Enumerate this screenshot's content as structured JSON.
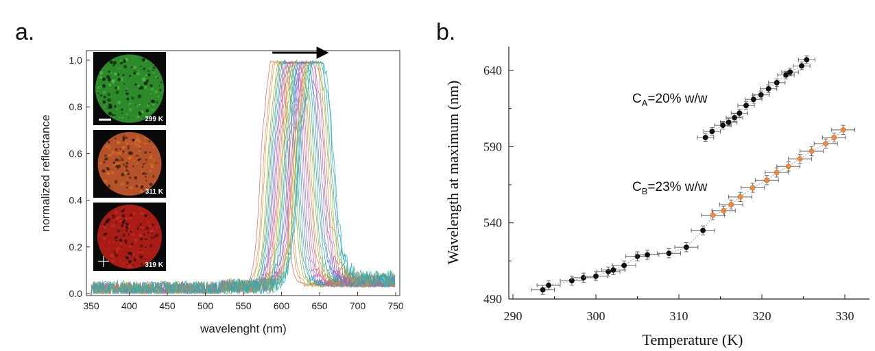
{
  "panel_a": {
    "letter": "a.",
    "insets": [
      {
        "temp_label": "299 K",
        "base": "#2d8a2a",
        "hi": "#59c24a"
      },
      {
        "temp_label": "311 K",
        "base": "#b5522a",
        "hi": "#d8792e"
      },
      {
        "temp_label": "319 K",
        "base": "#a81c16",
        "hi": "#d23220"
      }
    ]
  },
  "panel_b": {
    "letter": "b."
  },
  "chart_data": [
    {
      "type": "line",
      "xlabel": "wavelenght (nm)",
      "ylabel": "normalized reflectance",
      "xlim": [
        350,
        750
      ],
      "ylim": [
        0,
        1.05
      ],
      "xticks": [
        "350",
        "400",
        "450",
        "500",
        "550",
        "600",
        "650",
        "700",
        "750"
      ],
      "yticks": [
        "0.0",
        "0.2",
        "0.4",
        "0.6",
        "0.8",
        "1.0"
      ],
      "grid": false,
      "annotation": "arrow from 590 nm to 657 nm at top indicating peak red-shift with temperature",
      "series_description": "normalized reflectance spectra, peaks shifting from ~590 nm to ~647 nm",
      "peak_wavelengths": [
        590,
        594,
        596,
        600,
        602,
        604,
        606,
        608,
        610,
        612,
        614,
        616,
        618,
        620,
        622,
        624,
        626,
        628,
        630,
        632,
        634,
        636,
        638,
        640,
        642,
        644,
        646,
        647
      ],
      "colors": [
        "#e8605e",
        "#f08a4a",
        "#d4a23a",
        "#9aa83a",
        "#5fae4a",
        "#3aa88a",
        "#33a3c4",
        "#4a86d0",
        "#7a6cd2",
        "#b060c4",
        "#d45a9a",
        "#e06070",
        "#e8805a",
        "#c49a3a",
        "#8ab040",
        "#4aae6a",
        "#2ea8a8",
        "#3a94d2",
        "#5a7ad4",
        "#8a66cc",
        "#b65cb8",
        "#d0608a",
        "#de7a5a",
        "#bca040",
        "#7cb44a",
        "#3cb08a",
        "#2aa8c4",
        "#28b4b8"
      ]
    },
    {
      "type": "scatter",
      "xlabel": "Temperature (K)",
      "ylabel": "Wavelength at maximum (nm)",
      "xlim": [
        288,
        335
      ],
      "ylim": [
        488,
        655
      ],
      "xticks": [
        "290",
        "300",
        "310",
        "320",
        "330"
      ],
      "yticks": [
        "490",
        "540",
        "590",
        "640"
      ],
      "grid": false,
      "series": [
        {
          "name": "C_A=20% w/w",
          "label_main": "C",
          "label_sub": "A",
          "label_rest": "=20% w/w",
          "color": "#111111",
          "points": [
            [
              313.2,
              596
            ],
            [
              314.0,
              600
            ],
            [
              315.3,
              604
            ],
            [
              316.0,
              606
            ],
            [
              316.7,
              609
            ],
            [
              317.3,
              612
            ],
            [
              318.1,
              617
            ],
            [
              319.0,
              621
            ],
            [
              319.9,
              624
            ],
            [
              320.8,
              628
            ],
            [
              321.8,
              632
            ],
            [
              322.9,
              637
            ],
            [
              323.4,
              639
            ],
            [
              324.8,
              643
            ],
            [
              325.4,
              647
            ]
          ],
          "xerr": 1.0,
          "yerr": 2.5
        },
        {
          "name": "C_B=23% w/w",
          "label_main": "C",
          "label_sub": "B",
          "label_rest": "=23% w/w",
          "color": "#111111",
          "points": [
            [
              293.6,
              496
            ],
            [
              294.3,
              499
            ],
            [
              297.1,
              502
            ],
            [
              298.5,
              504
            ],
            [
              300.0,
              505
            ],
            [
              301.5,
              508
            ],
            [
              302.1,
              509
            ],
            [
              303.4,
              512
            ],
            [
              305.0,
              518
            ],
            [
              306.2,
              519
            ],
            [
              308.8,
              520
            ],
            [
              310.9,
              524
            ],
            [
              312.9,
              535
            ],
            [
              314.1,
              545
            ],
            [
              315.4,
              548
            ],
            [
              316.3,
              552
            ],
            [
              317.4,
              557
            ],
            [
              318.9,
              563
            ],
            [
              320.6,
              568
            ],
            [
              321.8,
              573
            ],
            [
              323.2,
              577
            ],
            [
              324.6,
              582
            ],
            [
              326.0,
              587
            ],
            [
              327.7,
              592
            ],
            [
              328.7,
              596
            ],
            [
              329.8,
              601
            ]
          ],
          "highlight_from": 13,
          "highlight_color": "#f08a3c",
          "xerr": 1.4,
          "yerr": 3
        }
      ]
    }
  ]
}
